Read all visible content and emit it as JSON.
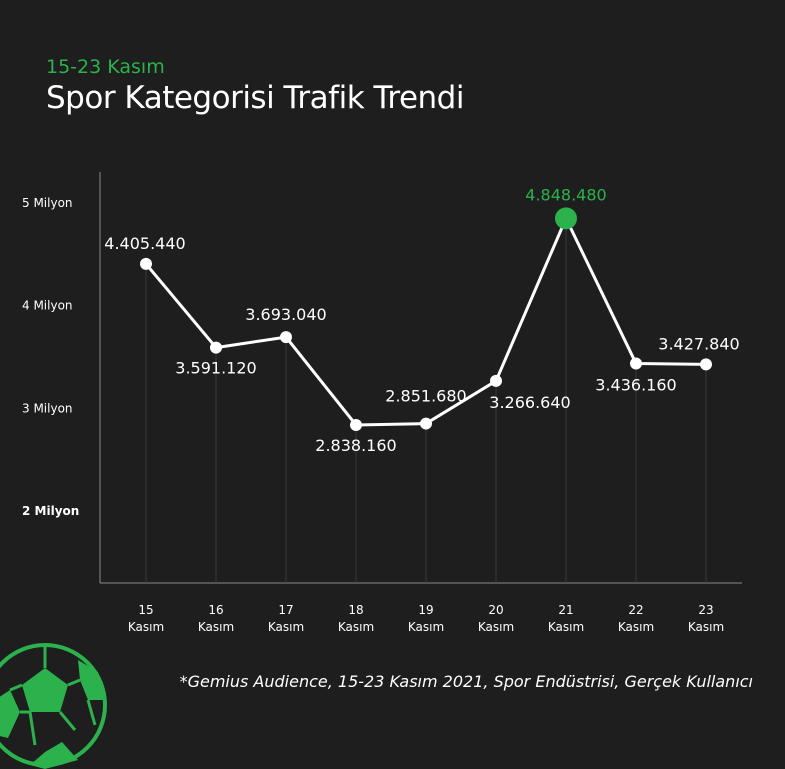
{
  "header": {
    "subtitle": "15-23 Kasım",
    "title": "Spor Kategorisi Trafik Trendi"
  },
  "footer": {
    "source": "*Gemius Audience, 15-23 Kasım 2021, Spor Endüstrisi, Gerçek Kullanıcı"
  },
  "colors": {
    "background": "#1e1e1e",
    "line": "#ffffff",
    "highlight": "#2bb24c",
    "axis": "#8a8a8a",
    "grid": "#3a3a3a"
  },
  "decoration": {
    "icon": "soccer-ball-icon"
  },
  "chart_data": {
    "type": "line",
    "x": [
      "15",
      "16",
      "17",
      "18",
      "19",
      "20",
      "21",
      "22",
      "23"
    ],
    "x_sublabel": "Kasım",
    "values": [
      4405440,
      3591120,
      3693040,
      2838160,
      2851680,
      3266640,
      4848480,
      3436160,
      3427840
    ],
    "labels": [
      "4.405.440",
      "3.591.120",
      "3.693.040",
      "2.838.160",
      "2.851.680",
      "3.266.640",
      "4.848.480",
      "3.436.160",
      "3.427.840"
    ],
    "highlight_index": 6,
    "yticks": [
      {
        "value": 5000000,
        "label": "5 Milyon"
      },
      {
        "value": 4000000,
        "label": "4 Milyon"
      },
      {
        "value": 3000000,
        "label": "3 Milyon"
      },
      {
        "value": 2000000,
        "label": "2 Milyon"
      }
    ],
    "ylim": [
      1300000,
      5300000
    ],
    "grid": false
  }
}
